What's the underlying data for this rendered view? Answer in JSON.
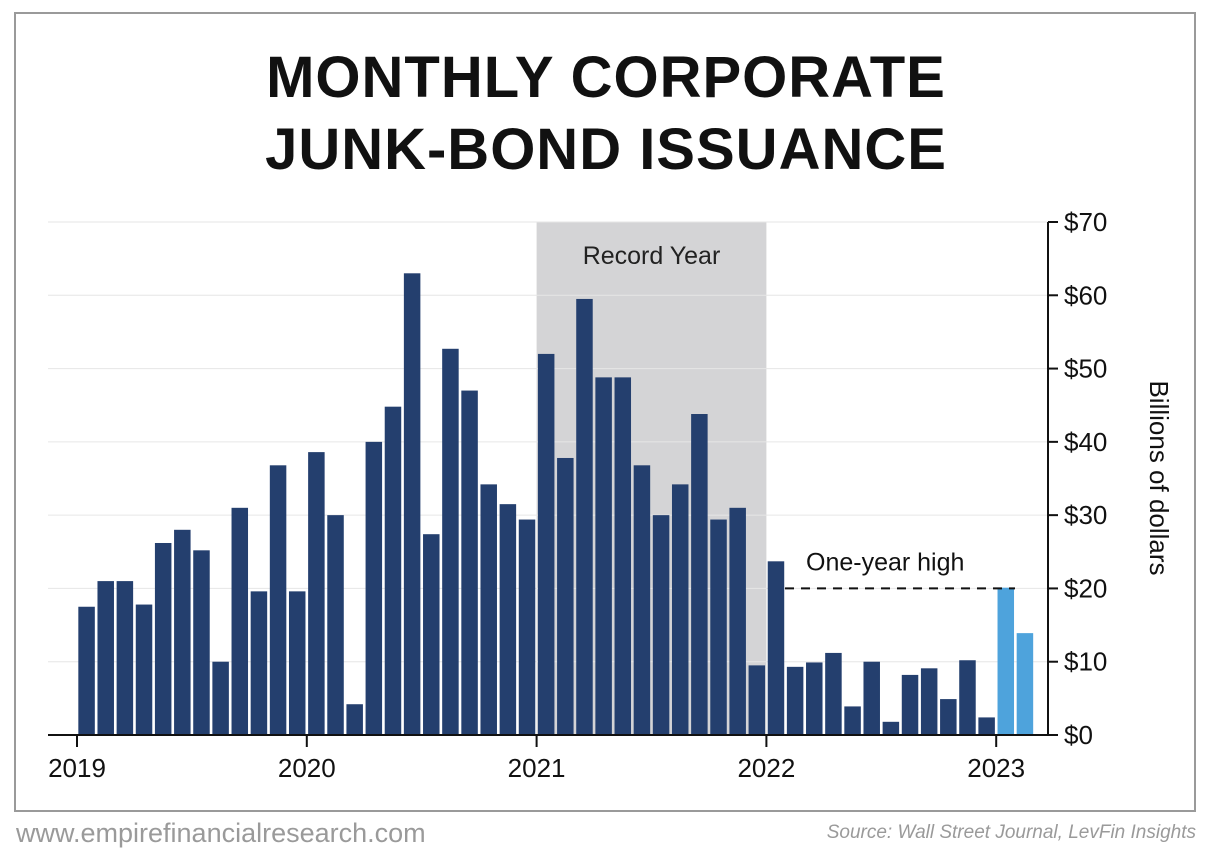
{
  "title_line1": "MONTHLY CORPORATE",
  "title_line2": "JUNK-BOND ISSUANCE",
  "footer": {
    "website": "www.empirefinancialresearch.com",
    "source": "Source: Wall Street Journal, LevFin Insights"
  },
  "chart_data": {
    "type": "bar",
    "title": "MONTHLY CORPORATE JUNK-BOND ISSUANCE",
    "ylabel": "Billions of dollars",
    "ylim": [
      0,
      70
    ],
    "y_ticks": [
      "$0",
      "$10",
      "$20",
      "$30",
      "$40",
      "$50",
      "$60",
      "$70"
    ],
    "x_tick_labels": [
      "2019",
      "2020",
      "2021",
      "2022",
      "2023"
    ],
    "grid": true,
    "y_axis_side": "right",
    "colors": {
      "bar": "#243f6e",
      "highlight": "#4ea3dc",
      "shade": "#d4d4d6"
    },
    "months": [
      "Jan 2019",
      "Feb 2019",
      "Mar 2019",
      "Apr 2019",
      "May 2019",
      "Jun 2019",
      "Jul 2019",
      "Aug 2019",
      "Sep 2019",
      "Oct 2019",
      "Nov 2019",
      "Dec 2019",
      "Jan 2020",
      "Feb 2020",
      "Mar 2020",
      "Apr 2020",
      "May 2020",
      "Jun 2020",
      "Jul 2020",
      "Aug 2020",
      "Sep 2020",
      "Oct 2020",
      "Nov 2020",
      "Dec 2020",
      "Jan 2021",
      "Feb 2021",
      "Mar 2021",
      "Apr 2021",
      "May 2021",
      "Jun 2021",
      "Jul 2021",
      "Aug 2021",
      "Sep 2021",
      "Oct 2021",
      "Nov 2021",
      "Dec 2021",
      "Jan 2022",
      "Feb 2022",
      "Mar 2022",
      "Apr 2022",
      "May 2022",
      "Jun 2022",
      "Jul 2022",
      "Aug 2022",
      "Sep 2022",
      "Oct 2022",
      "Nov 2022",
      "Dec 2022",
      "Jan 2023",
      "Feb 2023"
    ],
    "values": [
      17.5,
      21,
      21,
      17.8,
      26.2,
      28,
      25.2,
      10,
      31,
      19.6,
      36.8,
      19.6,
      38.6,
      30,
      4.2,
      40,
      44.8,
      63,
      27.4,
      52.7,
      47,
      34.2,
      31.5,
      29.4,
      52,
      37.8,
      59.5,
      48.8,
      48.8,
      36.8,
      30,
      34.2,
      43.8,
      29.4,
      31,
      9.5,
      23.7,
      9.3,
      9.9,
      11.2,
      3.9,
      10,
      1.8,
      8.2,
      9.1,
      4.9,
      10.2,
      2.4,
      20.1,
      13.9
    ],
    "highlighted": [
      "Jan 2023",
      "Feb 2023"
    ],
    "annotations": [
      {
        "label": "Record Year",
        "type": "shaded_span",
        "from": "2021",
        "to": "2022"
      },
      {
        "label": "One-year high",
        "type": "dashed_reference",
        "value": 20
      }
    ]
  }
}
